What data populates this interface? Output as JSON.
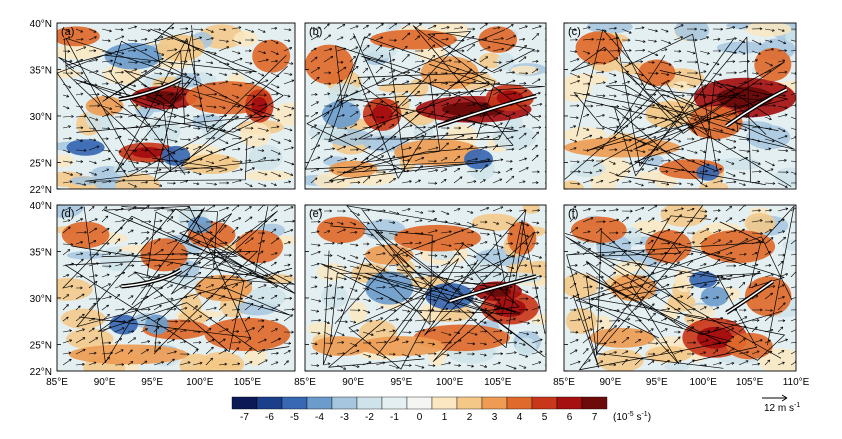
{
  "panels": [
    {
      "label": "(a)"
    },
    {
      "label": "(b)"
    },
    {
      "label": "(c)"
    },
    {
      "label": "(d)"
    },
    {
      "label": "(e)"
    },
    {
      "label": "(f)"
    }
  ],
  "lat_ticks": [
    "40°N",
    "35°N",
    "30°N",
    "25°N",
    "22°N"
  ],
  "lon_ticks": [
    "85°E",
    "90°E",
    "95°E",
    "100°E",
    "105°E",
    "110°E"
  ],
  "colorbar": {
    "ticks": [
      "-7",
      "-6",
      "-5",
      "-4",
      "-3",
      "-2",
      "-1",
      "0",
      "1",
      "2",
      "3",
      "4",
      "5",
      "6",
      "7"
    ],
    "unit": "(10",
    "unit_exp": "-5",
    "unit_tail": " s",
    "unit_exp2": "-1",
    "unit_close": ")",
    "colors": [
      "#0b1a57",
      "#1c3f8c",
      "#3868b3",
      "#6c9ccc",
      "#a6c6df",
      "#cfe3ea",
      "#e4eff2",
      "#f5f6f4",
      "#fbe7c2",
      "#f4c886",
      "#ee9c54",
      "#e06a2c",
      "#c9371a",
      "#a61010",
      "#6d0a0a"
    ]
  },
  "reference_vector": {
    "label": "12 m s",
    "exp": "-1"
  }
}
